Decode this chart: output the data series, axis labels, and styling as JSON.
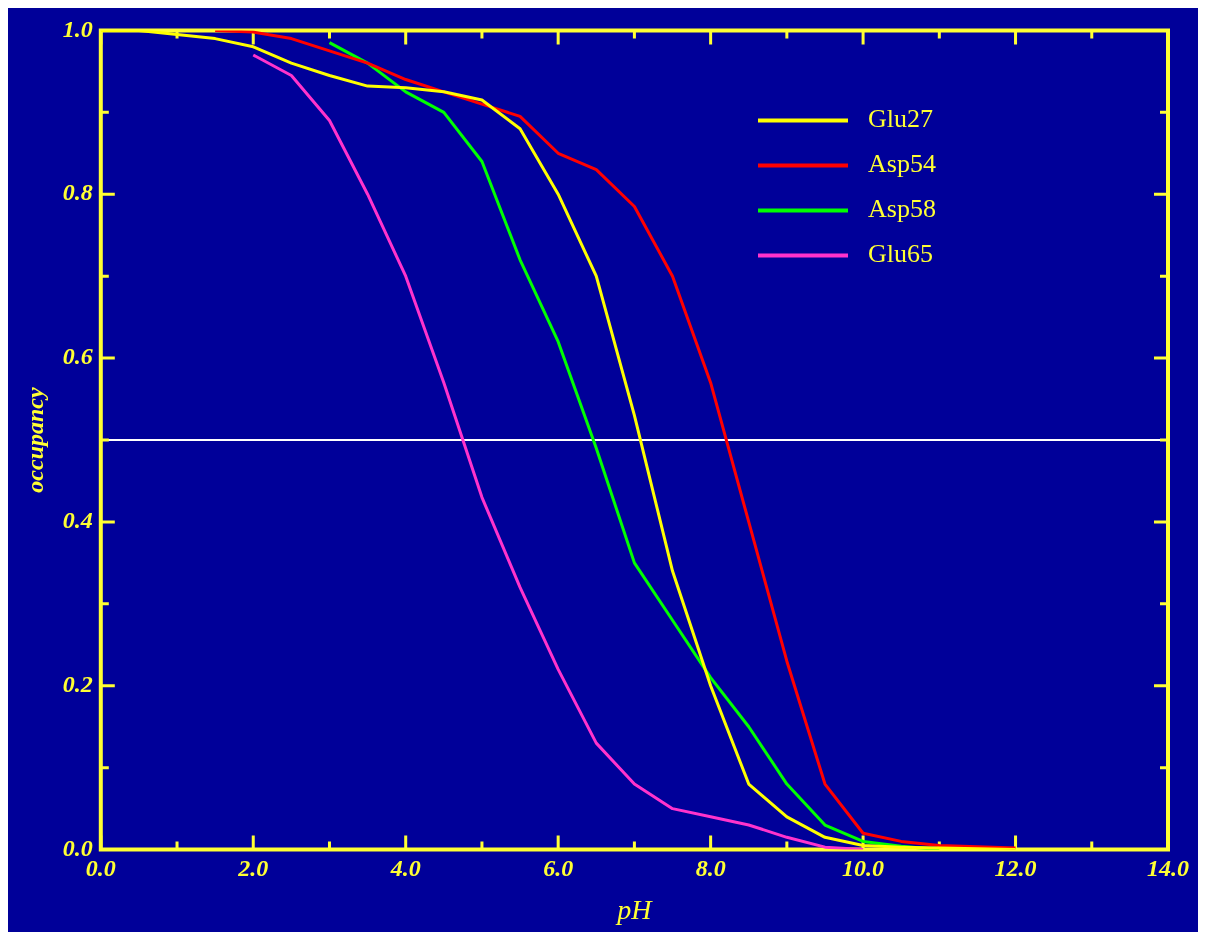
{
  "chart_data": {
    "type": "line",
    "xlabel": "pH",
    "ylabel": "occupancy",
    "x": [
      0,
      0.5,
      1,
      1.5,
      2,
      2.5,
      3,
      3.5,
      4,
      4.5,
      5,
      5.5,
      6,
      6.5,
      7,
      7.5,
      8,
      8.5,
      9,
      9.5,
      10,
      10.5,
      11,
      12
    ],
    "series": [
      {
        "name": "Glu27",
        "color": "#ffff00",
        "values": [
          1.0,
          1.0,
          0.995,
          0.99,
          0.98,
          0.96,
          0.945,
          0.932,
          0.93,
          0.925,
          0.915,
          0.88,
          0.8,
          0.7,
          0.53,
          0.34,
          0.2,
          0.08,
          0.04,
          0.015,
          0.005,
          0.003,
          0.002,
          0.0
        ]
      },
      {
        "name": "Asp54",
        "color": "#ff0000",
        "values": [
          null,
          null,
          null,
          1.0,
          0.998,
          0.99,
          0.975,
          0.96,
          0.94,
          0.925,
          0.91,
          0.895,
          0.85,
          0.83,
          0.785,
          0.7,
          0.57,
          0.4,
          0.23,
          0.08,
          0.02,
          0.01,
          0.005,
          0.002
        ]
      },
      {
        "name": "Asp58",
        "color": "#00ff00",
        "values": [
          null,
          null,
          null,
          null,
          null,
          null,
          0.985,
          0.96,
          0.925,
          0.9,
          0.84,
          0.72,
          0.62,
          0.49,
          0.35,
          0.28,
          0.21,
          0.15,
          0.08,
          0.03,
          0.01,
          0.004,
          0.0,
          null
        ]
      },
      {
        "name": "Glu65",
        "color": "#ff33cc",
        "values": [
          null,
          null,
          null,
          null,
          0.97,
          0.945,
          0.89,
          0.8,
          0.7,
          0.57,
          0.43,
          0.32,
          0.22,
          0.13,
          0.08,
          0.05,
          0.04,
          0.03,
          0.015,
          0.003,
          0.0,
          null,
          null,
          null
        ]
      }
    ],
    "xlim": [
      0,
      14
    ],
    "ylim": [
      0,
      1
    ],
    "xticks": [
      {
        "value": 0,
        "label": "0.0"
      },
      {
        "value": 1,
        "label": null
      },
      {
        "value": 2,
        "label": "2.0"
      },
      {
        "value": 3,
        "label": null
      },
      {
        "value": 4,
        "label": "4.0"
      },
      {
        "value": 5,
        "label": null
      },
      {
        "value": 6,
        "label": "6.0"
      },
      {
        "value": 7,
        "label": null
      },
      {
        "value": 8,
        "label": "8.0"
      },
      {
        "value": 9,
        "label": null
      },
      {
        "value": 10,
        "label": "10.0"
      },
      {
        "value": 11,
        "label": null
      },
      {
        "value": 12,
        "label": "12.0"
      },
      {
        "value": 13,
        "label": null
      },
      {
        "value": 14,
        "label": "14.0"
      }
    ],
    "yticks": [
      {
        "value": 0,
        "label": "0.0"
      },
      {
        "value": 0.1,
        "label": null
      },
      {
        "value": 0.2,
        "label": "0.2"
      },
      {
        "value": 0.3,
        "label": null
      },
      {
        "value": 0.4,
        "label": "0.4"
      },
      {
        "value": 0.5,
        "label": null
      },
      {
        "value": 0.6,
        "label": "0.6"
      },
      {
        "value": 0.7,
        "label": null
      },
      {
        "value": 0.8,
        "label": "0.8"
      },
      {
        "value": 0.9,
        "label": null
      },
      {
        "value": 1,
        "label": "1.0"
      }
    ],
    "ref_lines": [
      {
        "axis": "y",
        "value": 0.5,
        "color": "#ffffff"
      }
    ],
    "legend": "top right",
    "grid": false,
    "marker": "none",
    "line_style": "solid"
  }
}
